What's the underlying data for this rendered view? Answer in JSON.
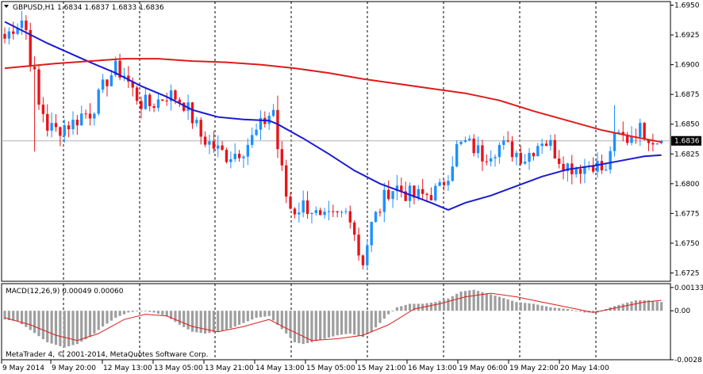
{
  "header": {
    "symbol_info": "GBPUSD,H1  1.6834 1.6837 1.6833 1.6836"
  },
  "price_tag": "1.6836",
  "macd_header": "MACD(12,26,9) 0.00049 0.00060",
  "copyright": "MetaTrader 4, © 2001-2014, MetaQuotes Software Corp.",
  "colors": {
    "bull_candle": "#1e90ff",
    "bear_candle": "#e8141a",
    "ma_fast": "#1a1ad4",
    "ma_slow": "#dd1c1c",
    "macd_histogram": "#9e9e9e",
    "macd_signal": "#dd1c1c",
    "price_tag_bg": "#000000",
    "grid": "#000000"
  },
  "chart_data": [
    {
      "type": "candlestick",
      "symbol": "GBPUSD",
      "timeframe": "H1",
      "last": {
        "open": 1.6834,
        "high": 1.6837,
        "low": 1.6833,
        "close": 1.6836
      },
      "ylim": [
        1.6718,
        1.6953
      ],
      "y_ticks": [
        "1.6950",
        "1.6925",
        "1.6900",
        "1.6875",
        "1.6850",
        "1.6825",
        "1.6800",
        "1.6775",
        "1.6750",
        "1.6725"
      ],
      "y_tick_values": [
        1.695,
        1.6925,
        1.69,
        1.6875,
        1.685,
        1.6825,
        1.68,
        1.6775,
        1.675,
        1.6725
      ],
      "x_ticks": [
        "9 May 2014",
        "9 May 20:00",
        "12 May 13:00",
        "13 May 05:00",
        "13 May 21:00",
        "14 May 13:00",
        "15 May 05:00",
        "15 May 21:00",
        "16 May 13:00",
        "19 May 06:00",
        "19 May 22:00",
        "20 May 14:00"
      ],
      "grid": "vertical dashed",
      "anchors": [
        [
          0,
          1.6922
        ],
        [
          2,
          1.6932
        ],
        [
          4,
          1.6938
        ],
        [
          5,
          1.6929
        ],
        [
          6,
          1.6905
        ],
        [
          7,
          1.689
        ],
        [
          8,
          1.6865
        ],
        [
          9,
          1.686
        ],
        [
          10,
          1.6848
        ],
        [
          12,
          1.6845
        ],
        [
          14,
          1.6849
        ],
        [
          16,
          1.6851
        ],
        [
          18,
          1.6858
        ],
        [
          20,
          1.686
        ],
        [
          22,
          1.6872
        ],
        [
          24,
          1.6888
        ],
        [
          26,
          1.6896
        ],
        [
          28,
          1.6892
        ],
        [
          30,
          1.6878
        ],
        [
          32,
          1.6868
        ],
        [
          34,
          1.6866
        ],
        [
          36,
          1.687
        ],
        [
          38,
          1.6875
        ],
        [
          40,
          1.6873
        ],
        [
          42,
          1.6868
        ],
        [
          44,
          1.6855
        ],
        [
          46,
          1.684
        ],
        [
          48,
          1.6834
        ],
        [
          50,
          1.6828
        ],
        [
          52,
          1.6824
        ],
        [
          54,
          1.6826
        ],
        [
          56,
          1.683
        ],
        [
          58,
          1.6838
        ],
        [
          60,
          1.6848
        ],
        [
          62,
          1.6858
        ],
        [
          63,
          1.6862
        ],
        [
          64,
          1.683
        ],
        [
          65,
          1.681
        ],
        [
          66,
          1.679
        ],
        [
          67,
          1.678
        ],
        [
          68,
          1.6778
        ],
        [
          70,
          1.6782
        ],
        [
          72,
          1.6779
        ],
        [
          74,
          1.6768
        ],
        [
          76,
          1.677
        ],
        [
          78,
          1.6772
        ],
        [
          80,
          1.6776
        ],
        [
          81,
          1.6775
        ],
        [
          82,
          1.676
        ],
        [
          83,
          1.6742
        ],
        [
          84,
          1.6736
        ],
        [
          85,
          1.675
        ],
        [
          86,
          1.6765
        ],
        [
          88,
          1.678
        ],
        [
          90,
          1.6795
        ],
        [
          92,
          1.6797
        ],
        [
          94,
          1.6792
        ],
        [
          96,
          1.6789
        ],
        [
          98,
          1.679
        ],
        [
          100,
          1.6792
        ],
        [
          102,
          1.6795
        ],
        [
          104,
          1.681
        ],
        [
          106,
          1.683
        ],
        [
          108,
          1.6834
        ],
        [
          110,
          1.683
        ],
        [
          112,
          1.6824
        ],
        [
          114,
          1.6828
        ],
        [
          116,
          1.6832
        ],
        [
          118,
          1.683
        ],
        [
          120,
          1.6826
        ],
        [
          122,
          1.6822
        ],
        [
          124,
          1.683
        ],
        [
          126,
          1.6838
        ],
        [
          128,
          1.6832
        ],
        [
          130,
          1.6822
        ],
        [
          132,
          1.6815
        ],
        [
          134,
          1.6814
        ],
        [
          136,
          1.6815
        ],
        [
          138,
          1.6818
        ],
        [
          140,
          1.6812
        ],
        [
          141,
          1.6808
        ],
        [
          142,
          1.683
        ],
        [
          143,
          1.6836
        ],
        [
          144,
          1.684
        ],
        [
          146,
          1.6838
        ],
        [
          148,
          1.6846
        ],
        [
          150,
          1.6844
        ],
        [
          152,
          1.6838
        ],
        [
          154,
          1.6836
        ]
      ],
      "overlays": [
        {
          "kind": "moving-average-fast",
          "points": [
            [
              0,
              1.6936
            ],
            [
              10,
              1.6918
            ],
            [
              20,
              1.6902
            ],
            [
              26,
              1.6893
            ],
            [
              32,
              1.6882
            ],
            [
              38,
              1.6873
            ],
            [
              44,
              1.6862
            ],
            [
              50,
              1.6856
            ],
            [
              56,
              1.6854
            ],
            [
              62,
              1.6853
            ],
            [
              64,
              1.685
            ],
            [
              70,
              1.6838
            ],
            [
              76,
              1.6825
            ],
            [
              82,
              1.6811
            ],
            [
              88,
              1.68
            ],
            [
              94,
              1.6792
            ],
            [
              100,
              1.6784
            ],
            [
              104,
              1.6778
            ],
            [
              108,
              1.6784
            ],
            [
              114,
              1.679
            ],
            [
              120,
              1.6798
            ],
            [
              126,
              1.6806
            ],
            [
              132,
              1.6812
            ],
            [
              138,
              1.6815
            ],
            [
              144,
              1.6819
            ],
            [
              150,
              1.6823
            ],
            [
              154,
              1.6824
            ]
          ]
        },
        {
          "kind": "moving-average-slow",
          "points": [
            [
              0,
              1.6897
            ],
            [
              6,
              1.6899
            ],
            [
              12,
              1.6901
            ],
            [
              20,
              1.6903
            ],
            [
              28,
              1.6905
            ],
            [
              36,
              1.6905
            ],
            [
              44,
              1.6903
            ],
            [
              52,
              1.6902
            ],
            [
              60,
              1.69
            ],
            [
              68,
              1.6897
            ],
            [
              76,
              1.6893
            ],
            [
              84,
              1.6888
            ],
            [
              92,
              1.6884
            ],
            [
              100,
              1.688
            ],
            [
              108,
              1.6876
            ],
            [
              116,
              1.687
            ],
            [
              124,
              1.6861
            ],
            [
              132,
              1.6853
            ],
            [
              140,
              1.6845
            ],
            [
              148,
              1.6839
            ],
            [
              154,
              1.6835
            ]
          ]
        }
      ]
    },
    {
      "type": "bar",
      "indicator": "MACD",
      "params": [
        12,
        26,
        9
      ],
      "main_value": 0.00049,
      "signal_value": 0.0006,
      "ylim": [
        -0.0028,
        0.00155
      ],
      "y_ticks": [
        "0.00133",
        "0.00",
        "-0.0028"
      ],
      "y_tick_values": [
        0.00133,
        0,
        -0.0028
      ],
      "histogram_anchors": [
        [
          0,
          -0.0005
        ],
        [
          3,
          -0.0006
        ],
        [
          6,
          -0.0011
        ],
        [
          10,
          -0.0018
        ],
        [
          14,
          -0.0021
        ],
        [
          17,
          -0.0019
        ],
        [
          20,
          -0.0015
        ],
        [
          23,
          -0.0009
        ],
        [
          26,
          -0.0004
        ],
        [
          29,
          -0.0001
        ],
        [
          32,
          0.0
        ],
        [
          35,
          -0.0001
        ],
        [
          38,
          -0.0003
        ],
        [
          41,
          -0.0008
        ],
        [
          44,
          -0.0012
        ],
        [
          47,
          -0.0013
        ],
        [
          50,
          -0.0012
        ],
        [
          53,
          -0.001
        ],
        [
          56,
          -0.0007
        ],
        [
          59,
          -0.0004
        ],
        [
          62,
          -0.0003
        ],
        [
          64,
          -0.0008
        ],
        [
          66,
          -0.0013
        ],
        [
          68,
          -0.0018
        ],
        [
          70,
          -0.0019
        ],
        [
          72,
          -0.0018
        ],
        [
          75,
          -0.0016
        ],
        [
          78,
          -0.0014
        ],
        [
          81,
          -0.0013
        ],
        [
          84,
          -0.0015
        ],
        [
          86,
          -0.0012
        ],
        [
          88,
          -0.0007
        ],
        [
          90,
          -0.0002
        ],
        [
          92,
          0.0002
        ],
        [
          95,
          0.0004
        ],
        [
          98,
          0.0004
        ],
        [
          101,
          0.0005
        ],
        [
          104,
          0.0007
        ],
        [
          107,
          0.0011
        ],
        [
          110,
          0.0012
        ],
        [
          113,
          0.001
        ],
        [
          116,
          0.0008
        ],
        [
          120,
          0.0005
        ],
        [
          124,
          0.0004
        ],
        [
          128,
          0.0002
        ],
        [
          132,
          0.0001
        ],
        [
          136,
          -0.0001
        ],
        [
          139,
          -0.0001
        ],
        [
          142,
          0.0002
        ],
        [
          145,
          0.0004
        ],
        [
          148,
          0.0006
        ],
        [
          151,
          0.0006
        ],
        [
          154,
          0.0005
        ]
      ],
      "signal_anchors": [
        [
          0,
          -0.0004
        ],
        [
          6,
          -0.0008
        ],
        [
          12,
          -0.0014
        ],
        [
          17,
          -0.0017
        ],
        [
          22,
          -0.0013
        ],
        [
          28,
          -0.0005
        ],
        [
          33,
          -0.0002
        ],
        [
          38,
          -0.0003
        ],
        [
          44,
          -0.0009
        ],
        [
          50,
          -0.0012
        ],
        [
          56,
          -0.0009
        ],
        [
          62,
          -0.0005
        ],
        [
          66,
          -0.001
        ],
        [
          72,
          -0.0017
        ],
        [
          78,
          -0.0016
        ],
        [
          84,
          -0.0014
        ],
        [
          90,
          -0.0008
        ],
        [
          96,
          0.0001
        ],
        [
          102,
          0.0004
        ],
        [
          108,
          0.0008
        ],
        [
          114,
          0.001
        ],
        [
          120,
          0.0008
        ],
        [
          126,
          0.0005
        ],
        [
          132,
          0.0002
        ],
        [
          138,
          -0.0001
        ],
        [
          144,
          0.0002
        ],
        [
          150,
          0.0005
        ],
        [
          154,
          0.0006
        ]
      ]
    }
  ]
}
